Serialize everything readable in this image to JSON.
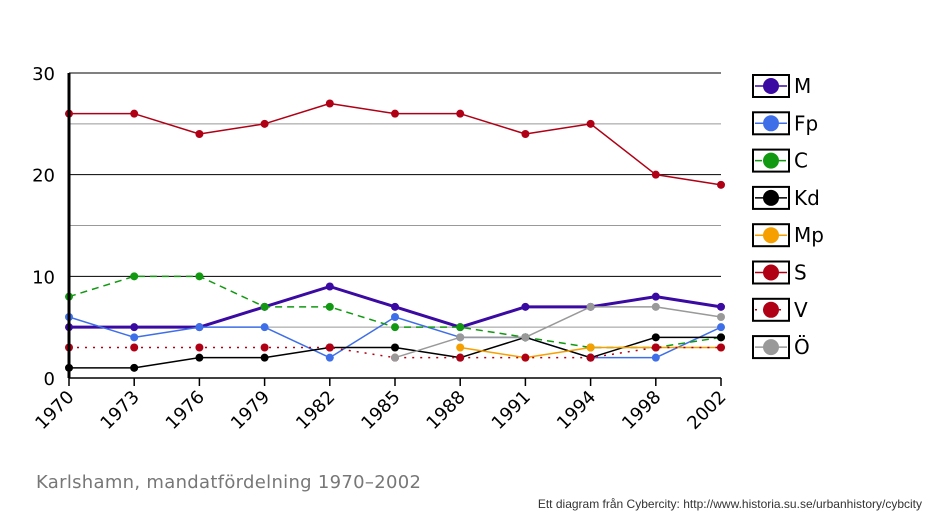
{
  "caption": "Karlshamn, mandatfördelning 1970–2002",
  "credit": "Ett diagram från Cybercity: http://www.historia.su.se/urbanhistory/cybcity",
  "chart_data": {
    "type": "line",
    "title": "",
    "xlabel": "",
    "ylabel": "",
    "ylim": [
      0,
      30
    ],
    "yticks": [
      0,
      10,
      20,
      30
    ],
    "grid": "horizontal",
    "legend": "right",
    "categories": [
      "1970",
      "1973",
      "1976",
      "1979",
      "1982",
      "1985",
      "1988",
      "1991",
      "1994",
      "1998",
      "2002"
    ],
    "series": [
      {
        "name": "M",
        "color": "#3a0aa3",
        "dash": "solid",
        "width": 3,
        "values": [
          5,
          5,
          5,
          7,
          9,
          7,
          5,
          7,
          7,
          8,
          7
        ]
      },
      {
        "name": "Fp",
        "color": "#3f6fe8",
        "dash": "solid",
        "width": 1.5,
        "values": [
          6,
          4,
          5,
          5,
          2,
          6,
          4,
          4,
          2,
          2,
          5
        ]
      },
      {
        "name": "C",
        "color": "#119911",
        "dash": "dashed",
        "width": 1.5,
        "values": [
          8,
          10,
          10,
          7,
          7,
          5,
          5,
          4,
          3,
          3,
          4
        ]
      },
      {
        "name": "Kd",
        "color": "#000000",
        "dash": "solid",
        "width": 1.5,
        "values": [
          1,
          1,
          2,
          2,
          3,
          3,
          2,
          4,
          2,
          4,
          4
        ]
      },
      {
        "name": "Mp",
        "color": "#f5a000",
        "dash": "solid",
        "width": 1.5,
        "values": [
          null,
          null,
          null,
          null,
          null,
          null,
          3,
          2,
          3,
          3,
          3
        ]
      },
      {
        "name": "S",
        "color": "#b00015",
        "dash": "solid",
        "width": 1.5,
        "values": [
          26,
          26,
          24,
          25,
          27,
          26,
          26,
          24,
          25,
          20,
          19
        ]
      },
      {
        "name": "V",
        "color": "#b00015",
        "dash": "dotted",
        "width": 1.5,
        "values": [
          3,
          3,
          3,
          3,
          3,
          2,
          2,
          2,
          2,
          3,
          3
        ]
      },
      {
        "name": "Ö",
        "color": "#999999",
        "dash": "solid",
        "width": 1.5,
        "values": [
          null,
          null,
          null,
          null,
          null,
          2,
          4,
          4,
          7,
          7,
          6
        ]
      }
    ]
  }
}
